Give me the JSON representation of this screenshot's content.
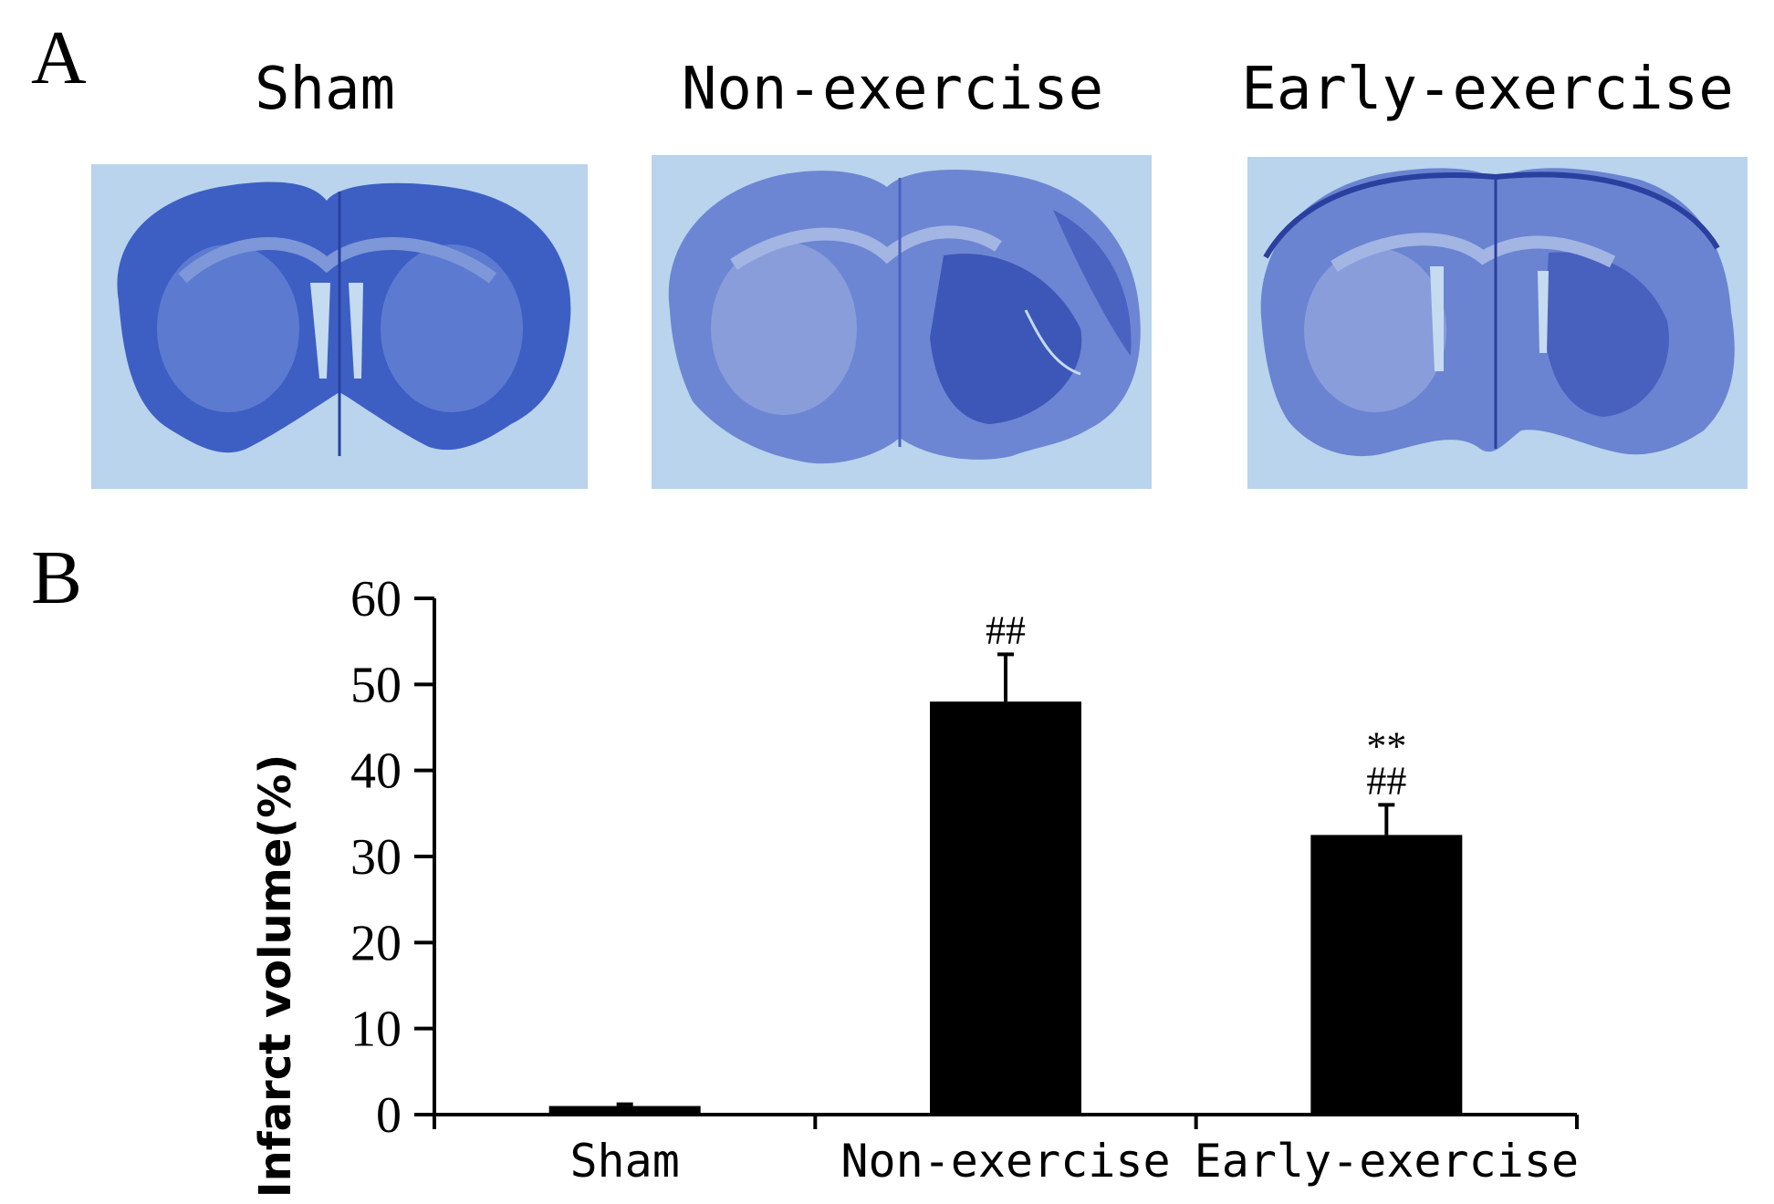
{
  "panel_a": {
    "letter": "A",
    "columns": [
      {
        "title": "Sham",
        "image": "brain-section-sham"
      },
      {
        "title": "Non-exercise",
        "image": "brain-section-non-exercise"
      },
      {
        "title": "Early-exercise",
        "image": "brain-section-early-exercise"
      }
    ],
    "colors": {
      "stain": "#3d5fc4",
      "background": "#b9d4ec",
      "dark_stain": "#2a3f9e"
    }
  },
  "panel_b": {
    "letter": "B"
  },
  "chart_data": {
    "type": "bar",
    "categories": [
      "Sham",
      "Non-exercise",
      "Early-exercise"
    ],
    "values": [
      1,
      48,
      32.5
    ],
    "error": [
      0.2,
      5.5,
      3.5
    ],
    "annotations": [
      [],
      [
        "##"
      ],
      [
        "**",
        "##"
      ]
    ],
    "ylabel": "Infarct volume(%)",
    "xlabel": "",
    "ylim": [
      0,
      60
    ],
    "yticks": [
      0,
      10,
      20,
      30,
      40,
      50,
      60
    ],
    "grid": false,
    "bar_color": "#000000"
  }
}
